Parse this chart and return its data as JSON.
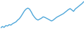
{
  "values": [
    55,
    58,
    56,
    60,
    59,
    62,
    61,
    64,
    66,
    68,
    72,
    75,
    80,
    86,
    92,
    96,
    98,
    96,
    90,
    83,
    78,
    74,
    72,
    74,
    76,
    79,
    78,
    76,
    74,
    72,
    70,
    72,
    75,
    78,
    80,
    82,
    84,
    86,
    89,
    92,
    95,
    97,
    94,
    91,
    96,
    99,
    102,
    105,
    108,
    112
  ],
  "line_color": "#4da6d9",
  "background_color": "#ffffff",
  "linewidth": 1.0
}
